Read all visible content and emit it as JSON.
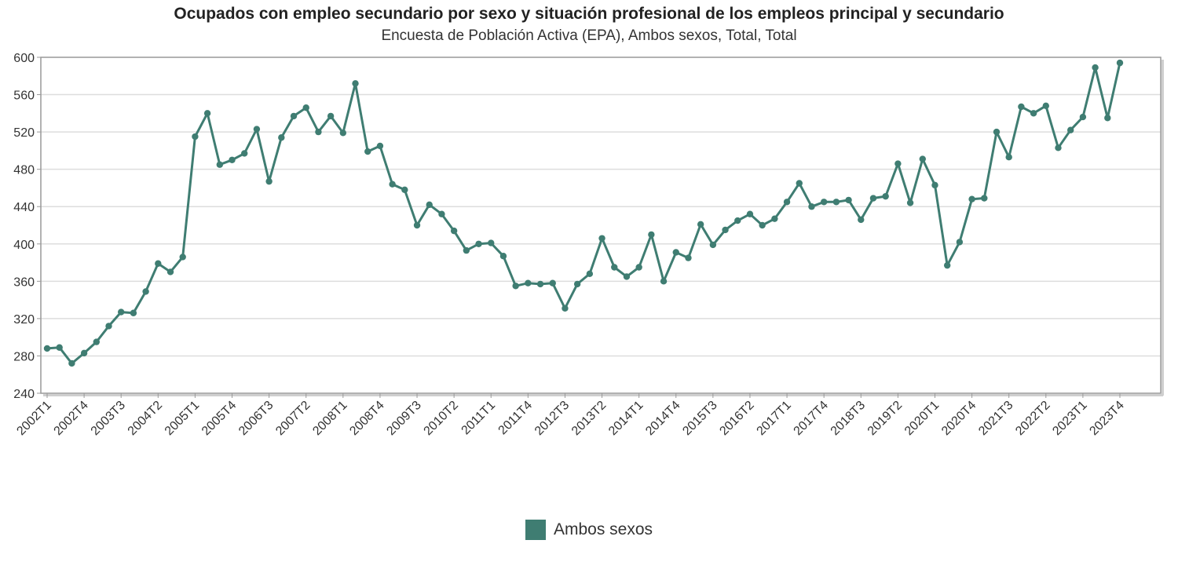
{
  "chart_data": {
    "type": "line",
    "title": "Ocupados con empleo secundario por sexo y situación profesional de los empleos principal y secundario",
    "subtitle": "Encuesta de Población Activa (EPA), Ambos sexos, Total, Total",
    "ylim": [
      240,
      600
    ],
    "yticks": [
      240,
      280,
      320,
      360,
      400,
      440,
      480,
      520,
      560,
      600
    ],
    "grid": true,
    "legend_position": "bottom",
    "x": [
      "2002T1",
      "2002T2",
      "2002T3",
      "2002T4",
      "2003T1",
      "2003T2",
      "2003T3",
      "2003T4",
      "2004T1",
      "2004T2",
      "2004T3",
      "2004T4",
      "2005T1",
      "2005T2",
      "2005T3",
      "2005T4",
      "2006T1",
      "2006T2",
      "2006T3",
      "2006T4",
      "2007T1",
      "2007T2",
      "2007T3",
      "2007T4",
      "2008T1",
      "2008T2",
      "2008T3",
      "2008T4",
      "2009T1",
      "2009T2",
      "2009T3",
      "2009T4",
      "2010T1",
      "2010T2",
      "2010T3",
      "2010T4",
      "2011T1",
      "2011T2",
      "2011T3",
      "2011T4",
      "2012T1",
      "2012T2",
      "2012T3",
      "2012T4",
      "2013T1",
      "2013T2",
      "2013T3",
      "2013T4",
      "2014T1",
      "2014T2",
      "2014T3",
      "2014T4",
      "2015T1",
      "2015T2",
      "2015T3",
      "2015T4",
      "2016T1",
      "2016T2",
      "2016T3",
      "2016T4",
      "2017T1",
      "2017T2",
      "2017T3",
      "2017T4",
      "2018T1",
      "2018T2",
      "2018T3",
      "2018T4",
      "2019T1",
      "2019T2",
      "2019T3",
      "2019T4",
      "2020T1",
      "2020T2",
      "2020T3",
      "2020T4",
      "2021T1",
      "2021T2",
      "2021T3",
      "2021T4",
      "2022T1",
      "2022T2",
      "2022T3",
      "2022T4",
      "2023T1",
      "2023T2",
      "2023T3",
      "2023T4"
    ],
    "xtick_labels": [
      "2002T1",
      "2002T4",
      "2003T3",
      "2004T2",
      "2005T1",
      "2005T4",
      "2006T3",
      "2007T2",
      "2008T1",
      "2008T4",
      "2009T3",
      "2010T2",
      "2011T1",
      "2011T4",
      "2012T3",
      "2013T2",
      "2014T1",
      "2014T4",
      "2015T3",
      "2016T2",
      "2017T1",
      "2017T4",
      "2018T3",
      "2019T2",
      "2020T1",
      "2020T4",
      "2021T3",
      "2022T2",
      "2023T1",
      "2023T4"
    ],
    "series": [
      {
        "name": "Ambos sexos",
        "color": "#3f7d72",
        "values": [
          288,
          289,
          272,
          283,
          295,
          312,
          327,
          326,
          349,
          379,
          370,
          386,
          515,
          540,
          485,
          490,
          497,
          523,
          467,
          514,
          537,
          546,
          520,
          537,
          519,
          572,
          499,
          505,
          464,
          458,
          420,
          442,
          432,
          414,
          393,
          400,
          401,
          387,
          355,
          358,
          357,
          358,
          331,
          357,
          368,
          406,
          375,
          365,
          375,
          410,
          360,
          391,
          385,
          421,
          399,
          415,
          425,
          432,
          420,
          427,
          445,
          465,
          440,
          445,
          445,
          447,
          426,
          449,
          451,
          486,
          444,
          491,
          463,
          377,
          402,
          448,
          449,
          520,
          493,
          547,
          540,
          548,
          503,
          522,
          536,
          589,
          535,
          594
        ]
      }
    ]
  }
}
